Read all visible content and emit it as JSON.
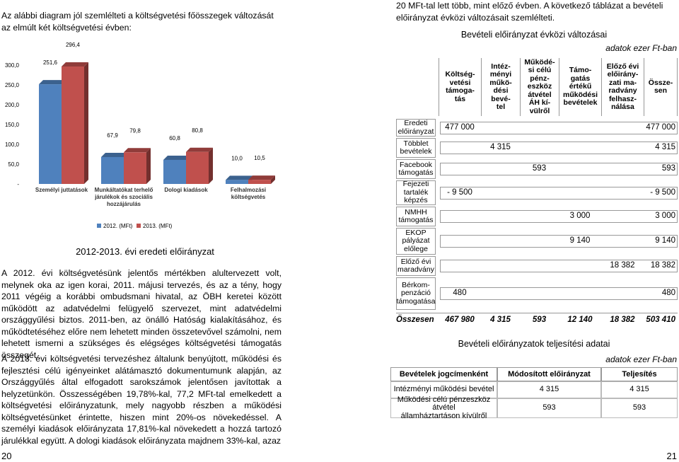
{
  "left_page": {
    "intro": "Az alábbi diagram jól szemlélteti a költségvetési főösszegek változását az elmúlt két költségvetési évben:",
    "paragraphs": [
      "A 2012. évi költségvetésünk jelentős mértékben alultervezett volt, melynek oka az igen korai, 2011. májusi tervezés, és az a tény, hogy 2011 végéig a korábbi ombudsmani hivatal, az ÖBH keretei között működött az adatvédelmi felügyelő szervezet, mint adatvédelmi országgyűlési biztos. 2011-ben, az önálló Hatóság kialakításához, és működtetéséhez előre nem lehetett minden összetevővel számolni, nem lehetett ismerni a szükséges és elégséges költségvetési támogatás összegét.",
      "A 2013. évi költségvetési tervezéshez általunk benyújtott, működési és fejlesztési célú igényeinket alátámasztó dokumentumunk alapján, az Országgyűlés által elfogadott sarokszámok jelentősen javítottak a helyzetünkön. Összességében 19,78%-kal, 77,2 MFt-tal emelkedett a költségvetési előirányzatunk, mely nagyobb részben a működési költségvetésünket érintette, hiszen mint 20%-os növekedéssel. A személyi kiadások előirányzata 17,81%-kal növekedett a hozzá tartozó járulékkal együtt. A dologi kiadások előirányzata majdnem 33%-kal, azaz"
    ],
    "page_number": "20"
  },
  "chart_data": {
    "type": "bar",
    "title": "2012-2013. évi eredeti előirányzat",
    "categories": [
      "Személyi juttatások",
      "Munkáltatókat terhelő járulékok és szociális hozzájárulás",
      "Dologi kiadások",
      "Felhalmozási költségvetés"
    ],
    "series": [
      {
        "name": "2012. (MFt)",
        "color": "#4f81bd",
        "values": [
          251.6,
          67.9,
          60.8,
          10.0
        ],
        "value_labels": [
          "251,6",
          "67,9",
          "60,8",
          "10,0"
        ]
      },
      {
        "name": "2013. (MFt)",
        "color": "#c0504d",
        "values": [
          296.4,
          79.8,
          80.8,
          10.5
        ],
        "value_labels": [
          "296,4",
          "79,8",
          "80,8",
          "10,5"
        ]
      }
    ],
    "ylim": [
      0,
      300
    ],
    "yticks": [
      {
        "value": 0,
        "label": "-"
      },
      {
        "value": 50,
        "label": "50,0"
      },
      {
        "value": 100,
        "label": "100,0"
      },
      {
        "value": 150,
        "label": "150,0"
      },
      {
        "value": 200,
        "label": "200,0"
      },
      {
        "value": 250,
        "label": "250,0"
      },
      {
        "value": 300,
        "label": "300,0"
      }
    ],
    "legend": "bottom"
  },
  "right_page": {
    "intro": "20 MFt-tal lett több, mint előző évben. A következő táblázat a bevételi előirányzat évközi változásait szemlélteti.",
    "page_number": "21"
  },
  "table1": {
    "title": "Bevételi előirányzat évközi változásai",
    "unit": "adatok ezer Ft-ban",
    "columns": [
      "Költség-\nvetési\ntámoga-\ntás",
      "Intéz-\nményi\nműkö-\ndési\nbevé-\ntel",
      "Működé-\nsi célú\npénz-\neszköz\nátvétel\nÁH kí-\nvülről",
      "Támo-\ngatás\nértékű\nműködési\nbevételek",
      "Előző évi\nelőirány-\nzati ma-\nradvány\nfelhasz-\nnálása",
      "Össze-\nsen"
    ],
    "rows": [
      {
        "label": "Eredeti\nelőirányzat",
        "cells": [
          "477 000",
          null,
          null,
          null,
          null,
          "477 000"
        ]
      },
      {
        "label": "Többlet\nbevételek",
        "cells": [
          null,
          "4 315",
          null,
          null,
          null,
          "4 315"
        ]
      },
      {
        "label": "Facebook\ntámogatás",
        "cells": [
          null,
          null,
          "593",
          null,
          null,
          "593"
        ]
      },
      {
        "label": "Fejezeti\ntartalék\nképzés",
        "cells": [
          "- 9 500",
          null,
          null,
          null,
          null,
          "- 9 500"
        ]
      },
      {
        "label": "NMHH\ntámogatás",
        "cells": [
          null,
          null,
          null,
          "3 000",
          null,
          "3 000"
        ]
      },
      {
        "label": "EKOP\npályázat\nelőlege",
        "cells": [
          null,
          null,
          null,
          "9 140",
          null,
          "9 140"
        ]
      },
      {
        "label": "Előző évi\nmaradvány",
        "cells": [
          null,
          null,
          null,
          null,
          "18 382",
          "18 382"
        ]
      },
      {
        "label": "Bérkom-\npenzáció\ntámogatása",
        "cells": [
          "480",
          null,
          null,
          null,
          null,
          "480"
        ]
      }
    ],
    "total": {
      "label": "Összesen",
      "cells": [
        "467 980",
        "4 315",
        "593",
        "12 140",
        "18 382",
        "503 410"
      ]
    }
  },
  "table2": {
    "title": "Bevételi előirányzatok teljesítési adatai",
    "unit": "adatok ezer Ft-ban",
    "columns": [
      "Bevételek jogcímenként",
      "Módosított előirányzat",
      "Teljesítés"
    ],
    "rows": [
      [
        "Intézményi működési bevétel",
        "4 315",
        "4 315"
      ],
      [
        "Működési célú pénzeszköz átvétel\nállamháztartáson kívülről",
        "593",
        "593"
      ]
    ]
  }
}
